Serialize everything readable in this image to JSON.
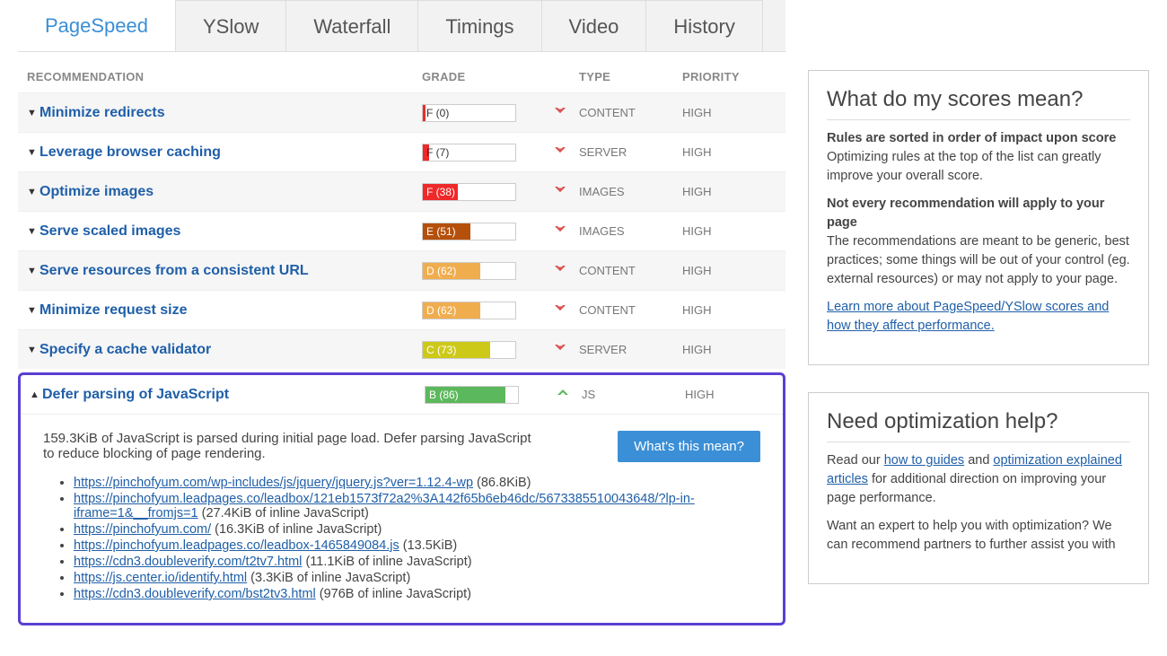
{
  "tabs": [
    {
      "label": "PageSpeed",
      "active": true
    },
    {
      "label": "YSlow",
      "active": false
    },
    {
      "label": "Waterfall",
      "active": false
    },
    {
      "label": "Timings",
      "active": false
    },
    {
      "label": "Video",
      "active": false
    },
    {
      "label": "History",
      "active": false
    }
  ],
  "headers": {
    "rec": "RECOMMENDATION",
    "grade": "GRADE",
    "type": "TYPE",
    "prio": "PRIORITY"
  },
  "grade_colors": {
    "F": "#ef2929",
    "E": "#b5500b",
    "D": "#f0ad4e",
    "C": "#cdc919",
    "B": "#5cb85c",
    "A": "#5cb85c"
  },
  "rows": [
    {
      "rec": "Minimize redirects",
      "grade": "F (0)",
      "score": 0,
      "type": "CONTENT",
      "prio": "HIGH",
      "chev": "down",
      "expanded": false,
      "color": "#ef2929",
      "labelDark": true
    },
    {
      "rec": "Leverage browser caching",
      "grade": "F (7)",
      "score": 7,
      "type": "SERVER",
      "prio": "HIGH",
      "chev": "down",
      "expanded": false,
      "color": "#ef2929",
      "labelDark": true
    },
    {
      "rec": "Optimize images",
      "grade": "F (38)",
      "score": 38,
      "type": "IMAGES",
      "prio": "HIGH",
      "chev": "down",
      "expanded": false,
      "color": "#ef2929",
      "labelDark": false
    },
    {
      "rec": "Serve scaled images",
      "grade": "E (51)",
      "score": 51,
      "type": "IMAGES",
      "prio": "HIGH",
      "chev": "down",
      "expanded": false,
      "color": "#b5500b",
      "labelDark": false
    },
    {
      "rec": "Serve resources from a consistent URL",
      "grade": "D (62)",
      "score": 62,
      "type": "CONTENT",
      "prio": "HIGH",
      "chev": "down",
      "expanded": false,
      "color": "#f0ad4e",
      "labelDark": false
    },
    {
      "rec": "Minimize request size",
      "grade": "D (62)",
      "score": 62,
      "type": "CONTENT",
      "prio": "HIGH",
      "chev": "down",
      "expanded": false,
      "color": "#f0ad4e",
      "labelDark": false
    },
    {
      "rec": "Specify a cache validator",
      "grade": "C (73)",
      "score": 73,
      "type": "SERVER",
      "prio": "HIGH",
      "chev": "down",
      "expanded": false,
      "color": "#cdc919",
      "labelDark": false
    },
    {
      "rec": "Defer parsing of JavaScript",
      "grade": "B (86)",
      "score": 86,
      "type": "JS",
      "prio": "HIGH",
      "chev": "up",
      "expanded": true,
      "color": "#5cb85c",
      "labelDark": false
    }
  ],
  "expanded": {
    "description": "159.3KiB of JavaScript is parsed during initial page load. Defer parsing JavaScript to reduce blocking of page rendering.",
    "whats_label": "What's this mean?",
    "items": [
      {
        "url": "https://pinchofyum.com/wp-includes/js/jquery/jquery.js?ver=1.12.4-wp",
        "size": " (86.8KiB)"
      },
      {
        "url": "https://pinchofyum.leadpages.co/leadbox/121eb1573f72a2%3A142f65b6eb46dc/5673385510043648/?lp-in-iframe=1&__fromjs=1",
        "size": " (27.4KiB of inline JavaScript)"
      },
      {
        "url": "https://pinchofyum.com/",
        "size": " (16.3KiB of inline JavaScript)"
      },
      {
        "url": "https://pinchofyum.leadpages.co/leadbox-1465849084.js",
        "size": " (13.5KiB)"
      },
      {
        "url": "https://cdn3.doubleverify.com/t2tv7.html",
        "size": " (11.1KiB of inline JavaScript)"
      },
      {
        "url": "https://js.center.io/identify.html",
        "size": " (3.3KiB of inline JavaScript)"
      },
      {
        "url": "https://cdn3.doubleverify.com/bst2tv3.html",
        "size": " (976B of inline JavaScript)"
      }
    ]
  },
  "sidebar": {
    "box1": {
      "title": "What do my scores mean?",
      "p1_bold": "Rules are sorted in order of impact upon score",
      "p1": "Optimizing rules at the top of the list can greatly improve your overall score.",
      "p2_bold": "Not every recommendation will apply to your page",
      "p2": "The recommendations are meant to be generic, best practices; some things will be out of your control (eg. external resources) or may not apply to your page.",
      "link": "Learn more about PageSpeed/YSlow scores and how they affect performance."
    },
    "box2": {
      "title": "Need optimization help?",
      "p1_a": "Read our ",
      "p1_link1": "how to guides",
      "p1_b": " and ",
      "p1_link2": "optimization explained articles",
      "p1_c": " for additional direction on improving your page performance.",
      "p2": "Want an expert to help you with optimization? We can recommend partners to further assist you with"
    }
  }
}
